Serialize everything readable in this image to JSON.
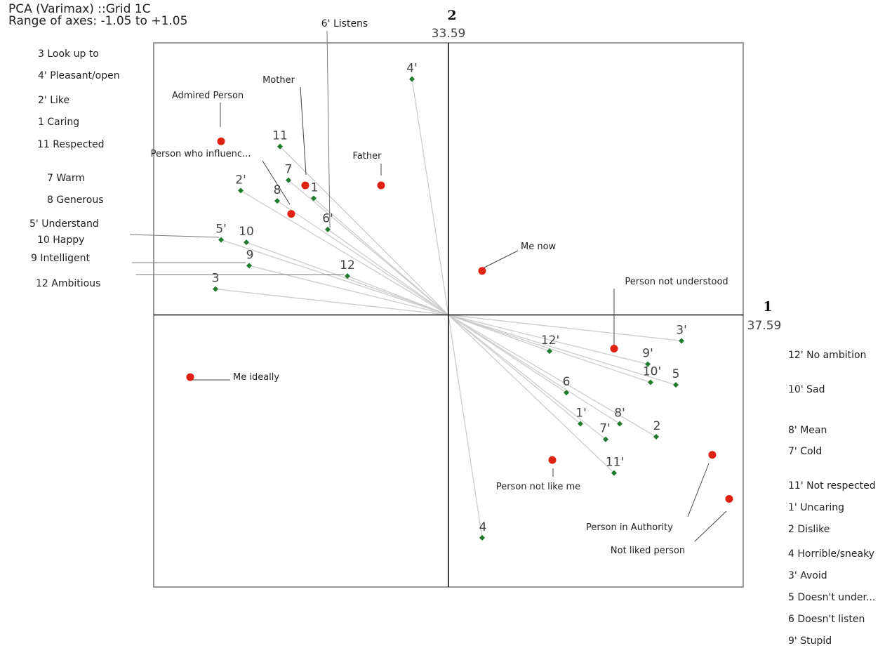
{
  "header": {
    "line1": "PCA (Varimax)   ::Grid 1C",
    "line2": "Range of axes: -1.05 to +1.05"
  },
  "chart_data": {
    "type": "scatter",
    "title": "PCA (Varimax)   ::Grid 1C",
    "subtitle": "Range of axes: -1.05 to +1.05",
    "xlim": [
      -1.05,
      1.05
    ],
    "ylim": [
      -1.05,
      1.05
    ],
    "axes": {
      "x": {
        "number": "1",
        "percent": "37.59"
      },
      "y": {
        "number": "2",
        "percent": "33.59"
      }
    },
    "colors": {
      "construct": "#1e7b2e",
      "element": "#dd2211",
      "vector": "#cccccc",
      "frame": "#999999",
      "axis": "#111111"
    },
    "constructs": [
      {
        "label": "4'",
        "x": -0.13,
        "y": 0.91,
        "name": "4' Pleasant/open"
      },
      {
        "label": "11",
        "x": -0.6,
        "y": 0.65,
        "name": "11 Respected"
      },
      {
        "label": "7",
        "x": -0.57,
        "y": 0.52,
        "name": "7 Warm"
      },
      {
        "label": "1",
        "x": -0.48,
        "y": 0.45,
        "name": "1 Caring"
      },
      {
        "label": "2'",
        "x": -0.74,
        "y": 0.48,
        "name": "2' Like"
      },
      {
        "label": "8",
        "x": -0.61,
        "y": 0.44,
        "name": "8 Generous"
      },
      {
        "label": "6'",
        "x": -0.43,
        "y": 0.33,
        "name": "6' Listens"
      },
      {
        "label": "5'",
        "x": -0.81,
        "y": 0.29,
        "name": "5' Understand"
      },
      {
        "label": "10",
        "x": -0.72,
        "y": 0.28,
        "name": "10 Happy"
      },
      {
        "label": "9",
        "x": -0.71,
        "y": 0.19,
        "name": "9 Intelligent"
      },
      {
        "label": "12",
        "x": -0.36,
        "y": 0.15,
        "name": "12 Ambitious"
      },
      {
        "label": "3",
        "x": -0.83,
        "y": 0.1,
        "name": "3 Look up to"
      },
      {
        "label": "3'",
        "x": 0.83,
        "y": -0.1,
        "name": "3' Avoid"
      },
      {
        "label": "12'",
        "x": 0.36,
        "y": -0.14,
        "name": "12' No ambition"
      },
      {
        "label": "9'",
        "x": 0.71,
        "y": -0.19,
        "name": "9' Stupid"
      },
      {
        "label": "10'",
        "x": 0.72,
        "y": -0.26,
        "name": "10' Sad"
      },
      {
        "label": "5",
        "x": 0.81,
        "y": -0.27,
        "name": "5 Doesn't under..."
      },
      {
        "label": "6",
        "x": 0.42,
        "y": -0.3,
        "name": "6 Doesn't listen"
      },
      {
        "label": "8'",
        "x": 0.61,
        "y": -0.42,
        "name": "8' Mean"
      },
      {
        "label": "2",
        "x": 0.74,
        "y": -0.47,
        "name": "2 Dislike"
      },
      {
        "label": "1'",
        "x": 0.47,
        "y": -0.42,
        "name": "1' Uncaring"
      },
      {
        "label": "7'",
        "x": 0.56,
        "y": -0.48,
        "name": "7' Cold"
      },
      {
        "label": "11'",
        "x": 0.59,
        "y": -0.61,
        "name": "11' Not respected"
      },
      {
        "label": "4",
        "x": 0.12,
        "y": -0.86,
        "name": "4 Horrible/sneaky"
      }
    ],
    "elements": [
      {
        "name": "Admired Person",
        "x": -0.81,
        "y": 0.67
      },
      {
        "name": "Mother",
        "x": -0.51,
        "y": 0.5
      },
      {
        "name": "Person who influenc...",
        "x": -0.56,
        "y": 0.39
      },
      {
        "name": "Father",
        "x": -0.24,
        "y": 0.5
      },
      {
        "name": "Me now",
        "x": 0.12,
        "y": 0.17
      },
      {
        "name": "Person not understood",
        "x": 0.59,
        "y": -0.13
      },
      {
        "name": "Me ideally",
        "x": -0.92,
        "y": -0.24
      },
      {
        "name": "Person not like me",
        "x": 0.37,
        "y": -0.56
      },
      {
        "name": "Person in Authority",
        "x": 0.94,
        "y": -0.54
      },
      {
        "name": "Not liked person",
        "x": 1.0,
        "y": -0.71
      }
    ],
    "left_pole_labels": [
      "3 Look up to",
      "4' Pleasant/open",
      "2' Like",
      "1 Caring",
      "11 Respected",
      "7 Warm",
      "8 Generous",
      "5' Understand",
      "10 Happy",
      "9 Intelligent",
      "12 Ambitious"
    ],
    "right_pole_labels": [
      "12' No ambition",
      "10' Sad",
      "8' Mean",
      "7' Cold",
      "11' Not respected",
      "1' Uncaring",
      "2 Dislike",
      "4 Horrible/sneaky",
      "3' Avoid",
      "5 Doesn't under...",
      "6 Doesn't listen",
      "9' Stupid"
    ],
    "top_pole_labels": [
      "6' Listens"
    ]
  }
}
